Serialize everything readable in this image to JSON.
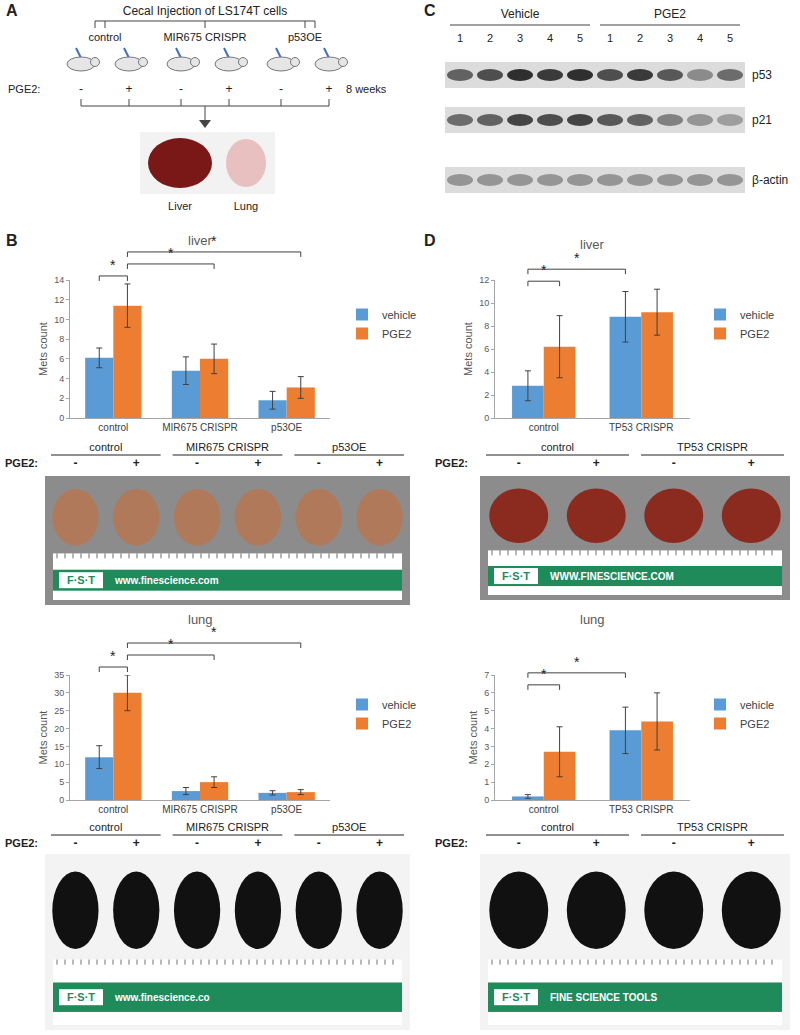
{
  "panel_labels": [
    "A",
    "B",
    "C",
    "D"
  ],
  "schematic": {
    "title": "Cecal Injection of LS174T cells",
    "groups": [
      "control",
      "MIR675 CRISPR",
      "p53OE"
    ],
    "treatment_label": "PGE2:",
    "signs": [
      "-",
      "+",
      "-",
      "+",
      "-",
      "+"
    ],
    "duration": "8 weeks",
    "organs": [
      "Liver",
      "Lung"
    ]
  },
  "blot": {
    "groups": [
      "Vehicle",
      "PGE2"
    ],
    "lanes": [
      "1",
      "2",
      "3",
      "4",
      "5",
      "1",
      "2",
      "3",
      "4",
      "5"
    ],
    "rows": [
      {
        "label": "p53",
        "intensity": [
          0.6,
          0.7,
          0.85,
          0.8,
          0.85,
          0.7,
          0.8,
          0.65,
          0.4,
          0.55
        ]
      },
      {
        "label": "p21",
        "intensity": [
          0.55,
          0.6,
          0.75,
          0.7,
          0.75,
          0.65,
          0.6,
          0.45,
          0.35,
          0.3
        ]
      },
      {
        "label": "β-actin",
        "intensity": [
          0.35,
          0.35,
          0.35,
          0.35,
          0.35,
          0.35,
          0.35,
          0.35,
          0.35,
          0.35
        ]
      }
    ]
  },
  "chart_data": [
    {
      "type": "bar",
      "title": "liver",
      "y_label": "Mets count",
      "categories": [
        "control",
        "MIR675 CRISPR",
        "p53OE"
      ],
      "series": [
        {
          "name": "vehicle",
          "color": "#5b9bd5",
          "values": [
            6.1,
            4.8,
            1.8
          ],
          "errors": [
            1.0,
            1.4,
            0.9
          ]
        },
        {
          "name": "PGE2",
          "color": "#ed7d31",
          "values": [
            11.4,
            6.0,
            3.1
          ],
          "errors": [
            2.2,
            1.5,
            1.1
          ]
        }
      ],
      "ylim": [
        0,
        14
      ],
      "yticks": [
        0,
        2,
        4,
        6,
        8,
        10,
        12,
        14
      ],
      "grid": false,
      "legend": "right",
      "significance": [
        {
          "from": [
            0,
            0
          ],
          "to": [
            0,
            1
          ],
          "label": "*"
        },
        {
          "from": [
            0,
            1
          ],
          "to": [
            1,
            1
          ],
          "label": "*"
        },
        {
          "from": [
            0,
            1
          ],
          "to": [
            2,
            1
          ],
          "label": "*"
        }
      ]
    },
    {
      "type": "bar",
      "title": "lung",
      "y_label": "Mets count",
      "categories": [
        "control",
        "MIR675 CRISPR",
        "p53OE"
      ],
      "series": [
        {
          "name": "vehicle",
          "color": "#5b9bd5",
          "values": [
            12,
            2.5,
            2
          ],
          "errors": [
            3.2,
            1.0,
            0.6
          ]
        },
        {
          "name": "PGE2",
          "color": "#ed7d31",
          "values": [
            30,
            5,
            2.2
          ],
          "errors": [
            5,
            1.5,
            0.7
          ]
        }
      ],
      "ylim": [
        0,
        35
      ],
      "yticks": [
        0,
        5,
        10,
        15,
        20,
        25,
        30,
        35
      ],
      "grid": false,
      "legend": "right",
      "significance": [
        {
          "from": [
            0,
            0
          ],
          "to": [
            0,
            1
          ],
          "label": "*"
        },
        {
          "from": [
            0,
            1
          ],
          "to": [
            1,
            1
          ],
          "label": "*"
        },
        {
          "from": [
            0,
            1
          ],
          "to": [
            2,
            1
          ],
          "label": "*"
        }
      ]
    },
    {
      "type": "bar",
      "title": "liver",
      "y_label": "Mets count",
      "categories": [
        "control",
        "TP53 CRISPR"
      ],
      "series": [
        {
          "name": "vehicle",
          "color": "#5b9bd5",
          "values": [
            2.8,
            8.8
          ],
          "errors": [
            1.3,
            2.2
          ]
        },
        {
          "name": "PGE2",
          "color": "#ed7d31",
          "values": [
            6.2,
            9.2
          ],
          "errors": [
            2.7,
            2.0
          ]
        }
      ],
      "ylim": [
        0,
        12
      ],
      "yticks": [
        0,
        2,
        4,
        6,
        8,
        10,
        12
      ],
      "grid": false,
      "legend": "right",
      "significance": [
        {
          "from": [
            0,
            0
          ],
          "to": [
            0,
            1
          ],
          "label": "*"
        },
        {
          "from": [
            0,
            0
          ],
          "to": [
            1,
            0
          ],
          "label": "*"
        }
      ]
    },
    {
      "type": "bar",
      "title": "lung",
      "y_label": "Mets count",
      "categories": [
        "control",
        "TP53 CRISPR"
      ],
      "series": [
        {
          "name": "vehicle",
          "color": "#5b9bd5",
          "values": [
            0.2,
            3.9
          ],
          "errors": [
            0.1,
            1.3
          ]
        },
        {
          "name": "PGE2",
          "color": "#ed7d31",
          "values": [
            2.7,
            4.4
          ],
          "errors": [
            1.4,
            1.6
          ]
        }
      ],
      "ylim": [
        0,
        7
      ],
      "yticks": [
        0,
        1,
        2,
        3,
        4,
        5,
        6,
        7
      ],
      "grid": false,
      "legend": "right",
      "significance": [
        {
          "from": [
            0,
            0
          ],
          "to": [
            0,
            1
          ],
          "label": "*"
        },
        {
          "from": [
            0,
            0
          ],
          "to": [
            1,
            0
          ],
          "label": "*"
        }
      ]
    }
  ],
  "photos": [
    {
      "groups": [
        "control",
        "MIR675 CRISPR",
        "p53OE"
      ],
      "treatment_label": "PGE2:",
      "signs": [
        "-",
        "+",
        "-",
        "+",
        "-",
        "+"
      ],
      "color": "#b07a5a",
      "ruler": {
        "brand": "F·S·T",
        "text": "www.finescience.com"
      }
    },
    {
      "groups": [
        "control",
        "MIR675 CRISPR",
        "p53OE"
      ],
      "treatment_label": "PGE2:",
      "signs": [
        "-",
        "+",
        "-",
        "+",
        "-",
        "+"
      ],
      "color": "#111111",
      "ruler": {
        "brand": "F·S·T",
        "text": "www.finescience.co"
      }
    },
    {
      "groups": [
        "control",
        "TP53 CRISPR"
      ],
      "treatment_label": "PGE2:",
      "signs": [
        "-",
        "+",
        "-",
        "+"
      ],
      "color": "#8b2a1e",
      "ruler": {
        "brand": "F·S·T",
        "text": "WWW.FINESCIENCE.COM"
      }
    },
    {
      "groups": [
        "control",
        "TP53 CRISPR"
      ],
      "treatment_label": "PGE2:",
      "signs": [
        "-",
        "+",
        "-",
        "+"
      ],
      "color": "#111111",
      "ruler": {
        "brand": "F·S·T",
        "text": "FINE SCIENCE TOOLS"
      }
    }
  ]
}
